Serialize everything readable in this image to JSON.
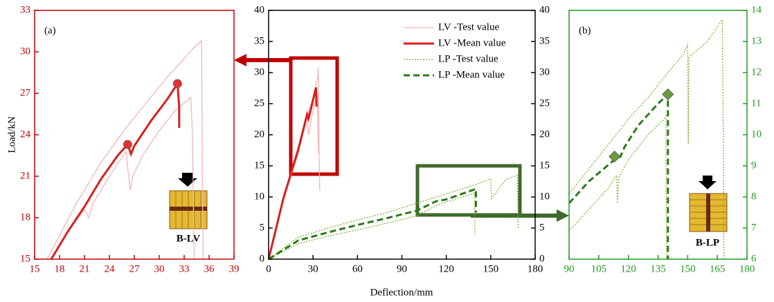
{
  "chart_data": [
    {
      "type": "line",
      "annotations": [
        "(a)",
        "B-LV"
      ],
      "y_label": "Load/kN",
      "axis_color": "#c00000",
      "xlim": [
        15,
        39
      ],
      "xticks": [
        15,
        18,
        21,
        24,
        27,
        30,
        33,
        36,
        39
      ],
      "ylim": [
        15,
        33
      ],
      "yticks": [
        15,
        18,
        21,
        24,
        27,
        30,
        33
      ],
      "series": [
        {
          "color": "#f4b6b6",
          "line_style": "solid",
          "x": [
            16.5,
            20,
            23,
            26,
            28,
            31,
            33,
            34,
            35.1,
            35.2,
            35.3
          ],
          "values": [
            15,
            19,
            22,
            24.5,
            26,
            28.2,
            29.5,
            30.2,
            30.8,
            20,
            15
          ]
        },
        {
          "color": "#f4b6b6",
          "line_style": "solid",
          "x": [
            17,
            19,
            21,
            21.5,
            22,
            24,
            26,
            26.5,
            26.8,
            28,
            30,
            32,
            33.8,
            34,
            34.2
          ],
          "values": [
            15,
            17,
            18.6,
            18,
            19,
            21,
            22.8,
            20,
            21,
            22.5,
            24.3,
            25.8,
            26.7,
            24,
            15
          ]
        },
        {
          "color": "#d81e1e",
          "line_style": "solid",
          "width": 3,
          "x": [
            17,
            19,
            21,
            23,
            25,
            26.2,
            26.6,
            27,
            29,
            31,
            32.2,
            32.4,
            32.4
          ],
          "values": [
            15,
            17,
            18.8,
            20.8,
            22.5,
            23.3,
            22.6,
            23.2,
            25,
            26.6,
            27.7,
            26,
            24.5
          ]
        },
        {
          "color": "#e83030",
          "marker": "circle",
          "x": [
            26.2,
            32.2
          ],
          "values": [
            23.3,
            27.7
          ]
        }
      ]
    },
    {
      "type": "line",
      "x_label": "Deflection/mm",
      "axis_color": "#000000",
      "legend": "upper right",
      "xlim": [
        0,
        180
      ],
      "xticks": [
        0,
        30,
        60,
        90,
        120,
        150,
        180
      ],
      "ylim": [
        0,
        40
      ],
      "yticks": [
        0,
        5,
        10,
        15,
        20,
        25,
        30,
        35,
        40
      ],
      "y2lim": [
        0,
        40
      ],
      "y2ticks": [
        0,
        5,
        10,
        15,
        20,
        25,
        30,
        35,
        40
      ],
      "series": [
        {
          "name": "LV -Test value",
          "color": "#f4b6b6",
          "line_style": "solid",
          "x": [
            0,
            10,
            20,
            30,
            32,
            33,
            33.5,
            34,
            34.5
          ],
          "values": [
            0,
            10,
            18,
            26,
            28,
            29,
            30.7,
            20,
            11
          ]
        },
        {
          "color": "#f4b6b6",
          "line_style": "solid",
          "x": [
            0,
            10,
            20,
            26,
            27,
            30,
            33,
            33.5
          ],
          "values": [
            0,
            9.5,
            17,
            22.8,
            20,
            24,
            26.7,
            17
          ]
        },
        {
          "name": "LV -Mean value",
          "color": "#d81e1e",
          "line_style": "solid",
          "width": 3,
          "x": [
            0,
            10,
            20,
            26,
            27,
            32,
            32.3,
            32.5
          ],
          "values": [
            0,
            9.8,
            17.6,
            23.3,
            22.6,
            27.6,
            25,
            24.5
          ]
        },
        {
          "name": "LP -Test value",
          "color": "#7fb236",
          "line_style": "dotted",
          "x": [
            0,
            20,
            40,
            60,
            80,
            100,
            120,
            140,
            150,
            150.5,
            160,
            168,
            168.5
          ],
          "values": [
            0,
            3.5,
            5,
            6.3,
            7.5,
            9,
            10.5,
            12,
            12.9,
            9.7,
            12.8,
            13.5,
            5
          ]
        },
        {
          "color": "#7fb236",
          "line_style": "dotted",
          "x": [
            0,
            20,
            40,
            60,
            80,
            100,
            114,
            120,
            139,
            139.3
          ],
          "values": [
            0,
            2.5,
            3.7,
            4.7,
            5.8,
            7,
            8.7,
            9.2,
            10.6,
            4
          ]
        },
        {
          "name": "LP -Mean value",
          "color": "#2a7a1a",
          "line_style": "dashed",
          "width": 3,
          "x": [
            0,
            20,
            40,
            60,
            80,
            100,
            113,
            120,
            140,
            140
          ],
          "values": [
            0,
            3,
            4.3,
            5.5,
            6.6,
            7.8,
            9.3,
            9.6,
            11.3,
            7.5
          ]
        }
      ]
    },
    {
      "type": "line",
      "annotations": [
        "(b)",
        "B-LP"
      ],
      "axis_color": "#1f9a1f",
      "xlim": [
        90,
        180
      ],
      "xticks": [
        90,
        105,
        120,
        135,
        150,
        165,
        180
      ],
      "y2lim": [
        6,
        14
      ],
      "y2ticks": [
        6,
        7,
        8,
        9,
        10,
        11,
        12,
        13,
        14
      ],
      "series": [
        {
          "color": "#7fb236",
          "line_style": "dotted",
          "axis": "y2",
          "x": [
            90,
            100,
            110,
            120,
            130,
            140,
            148,
            150,
            150.3,
            150.6,
            160,
            167.5,
            168,
            168.3
          ],
          "values": [
            8.1,
            8.9,
            9.7,
            10.5,
            11.2,
            12,
            12.6,
            12.9,
            9.7,
            12.5,
            13,
            13.7,
            10,
            6
          ]
        },
        {
          "color": "#7fb236",
          "line_style": "dotted",
          "axis": "y2",
          "x": [
            90,
            100,
            110,
            114,
            114.5,
            115,
            120,
            130,
            138,
            139,
            139.3
          ],
          "values": [
            6.9,
            7.6,
            8.3,
            8.7,
            7.8,
            8.6,
            9.2,
            10,
            10.5,
            10.6,
            6
          ]
        },
        {
          "color": "#2a7a1a",
          "line_style": "dashed",
          "width": 3,
          "axis": "y2",
          "x": [
            90,
            100,
            113,
            116,
            118,
            125,
            135,
            140,
            140,
            140
          ],
          "values": [
            7.8,
            8.5,
            9.2,
            9.3,
            9.6,
            10.3,
            11,
            11.3,
            10.8,
            6
          ]
        },
        {
          "color": "#6a9a3a",
          "marker": "diamond",
          "axis": "y2",
          "x": [
            113,
            140
          ],
          "values": [
            9.3,
            11.3
          ]
        }
      ]
    }
  ]
}
